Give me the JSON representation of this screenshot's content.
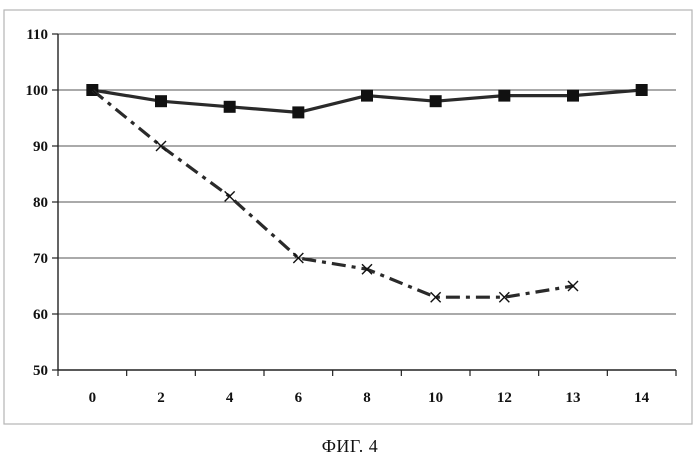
{
  "caption": "ФИГ. 4",
  "chart_data": {
    "type": "line",
    "categories": [
      "0",
      "2",
      "4",
      "6",
      "8",
      "10",
      "12",
      "13",
      "14"
    ],
    "ylim": [
      50,
      110
    ],
    "yticks": [
      50,
      60,
      70,
      80,
      90,
      100,
      110
    ],
    "grid": "horizontal",
    "series": [
      {
        "style": "solid",
        "marker": "square",
        "color": "#2a2a2a",
        "values": [
          100,
          98,
          97,
          96,
          99,
          98,
          99,
          99,
          100
        ]
      },
      {
        "style": "dash-dot",
        "marker": "x",
        "color": "#2a2a2a",
        "values": [
          100,
          90,
          81,
          70,
          68,
          63,
          63,
          65,
          null
        ]
      }
    ]
  }
}
